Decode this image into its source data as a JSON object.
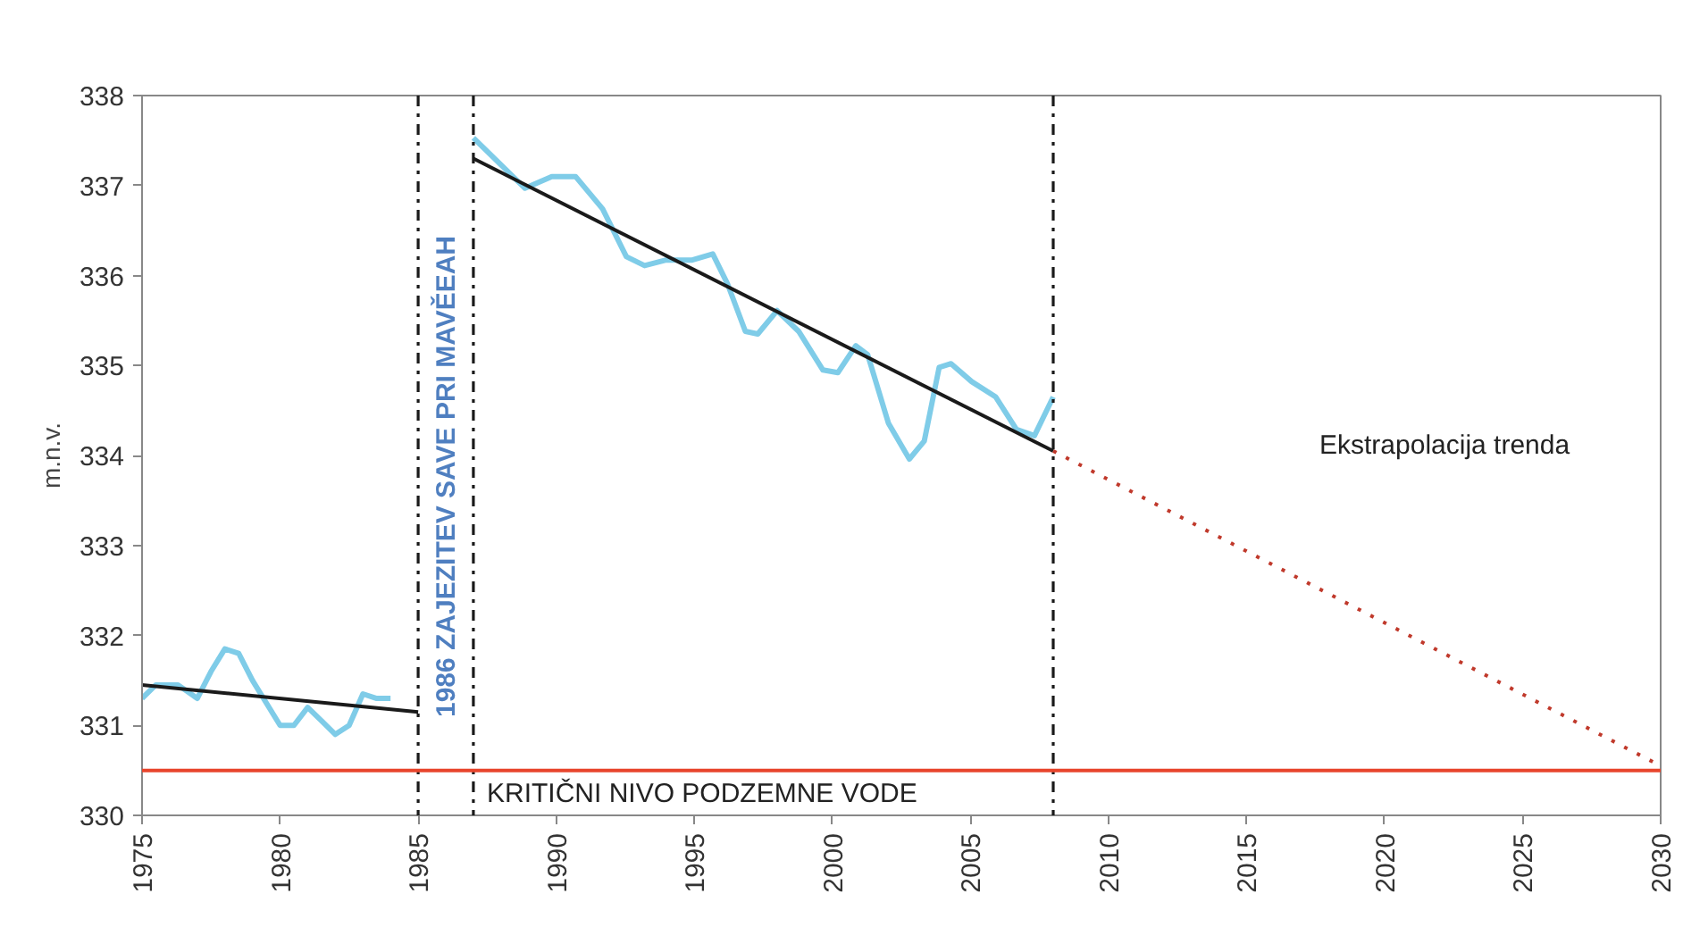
{
  "chart_data": {
    "type": "line",
    "ylabel": "m.n.v.",
    "xlim": [
      1975,
      2030
    ],
    "ylim": [
      330,
      338
    ],
    "xticks": [
      1975,
      1980,
      1985,
      1990,
      1995,
      2000,
      2005,
      2010,
      2015,
      2020,
      2025,
      2030
    ],
    "yticks": [
      330,
      331,
      332,
      333,
      334,
      335,
      336,
      337,
      338
    ],
    "grid": false,
    "marker": "none",
    "series": [
      {
        "color": "#7fcce8",
        "line_style": "solid",
        "x": [
          1975.0,
          1975.5,
          1976.3,
          1977.0,
          1977.5,
          1978.0,
          1978.5,
          1979.0,
          1980.0,
          1980.5,
          1981.0,
          1981.5,
          1982.0,
          1982.5,
          1983.0,
          1983.5,
          1984.0
        ],
        "values": [
          331.3,
          331.45,
          331.45,
          331.3,
          331.6,
          331.85,
          331.8,
          331.5,
          331.0,
          331.0,
          331.2,
          331.05,
          330.9,
          331.0,
          331.35,
          331.3,
          331.3
        ]
      },
      {
        "color": "#7fcce8",
        "line_style": "solid",
        "x": [
          1987.0,
          1988.87,
          1989.84,
          1990.7,
          1991.68,
          1992.54,
          1993.2,
          1993.95,
          1994.9,
          1995.67,
          1996.2,
          1996.85,
          1997.3,
          1998.0,
          1998.78,
          1999.66,
          2000.2,
          2000.85,
          2001.28,
          2002.03,
          2002.79,
          2003.33,
          2003.87,
          2004.3,
          2005.05,
          2005.92,
          2006.67,
          2007.32,
          2008.0
        ],
        "values": [
          337.53,
          336.97,
          337.1,
          337.1,
          336.74,
          336.21,
          336.11,
          336.17,
          336.17,
          336.24,
          335.91,
          335.38,
          335.35,
          335.61,
          335.38,
          334.95,
          334.92,
          335.22,
          335.12,
          334.36,
          333.96,
          334.16,
          334.98,
          335.02,
          334.82,
          334.65,
          334.29,
          334.22,
          334.65
        ]
      },
      {
        "color": "#1a1a1a",
        "line_style": "solid",
        "x": [
          1975,
          1985
        ],
        "values": [
          331.45,
          331.15
        ]
      },
      {
        "color": "#1a1a1a",
        "line_style": "solid",
        "x": [
          1987,
          2008
        ],
        "values": [
          337.3,
          334.05
        ]
      },
      {
        "color": "#c0392b",
        "line_style": "dotted",
        "x": [
          2008,
          2030
        ],
        "values": [
          334.05,
          330.55
        ]
      }
    ],
    "ref_lines": [
      {
        "axis": "x",
        "value": 1985,
        "color": "#1a1a1a",
        "line_style": "dashdot",
        "label": "1986 ZAJEZITEV  SAVE PRI MAVĚEAH"
      },
      {
        "axis": "x",
        "value": 1987,
        "color": "#1a1a1a",
        "line_style": "dashdot"
      },
      {
        "axis": "x",
        "value": 2008,
        "color": "#1a1a1a",
        "line_style": "dashdot"
      },
      {
        "axis": "y",
        "value": 330.5,
        "color": "#e8452c",
        "line_style": "solid",
        "label": "KRITIČNI NIVO PODZEMNE VODE"
      }
    ],
    "annotations": [
      "Ekstrapolacija trenda"
    ]
  }
}
